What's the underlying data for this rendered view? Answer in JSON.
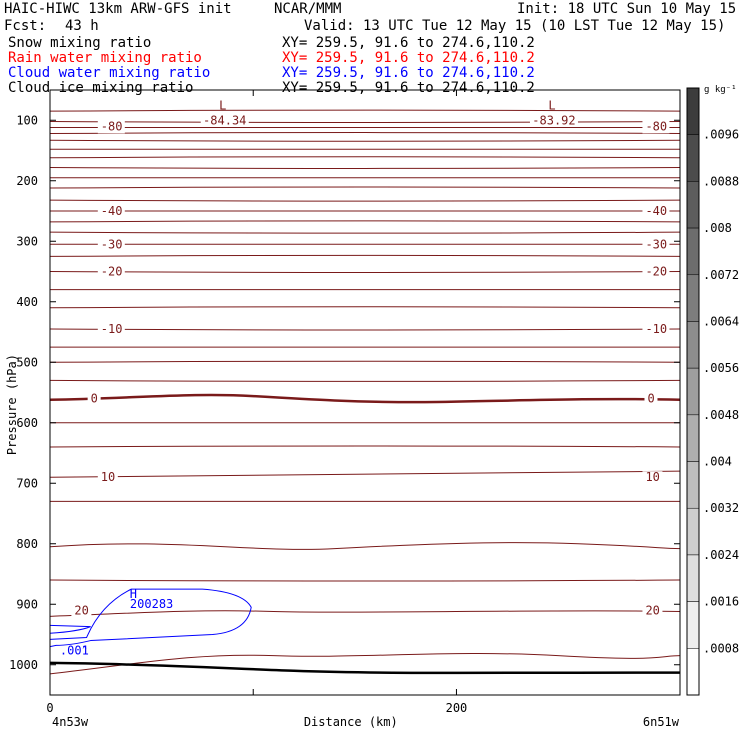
{
  "header": {
    "model": "HAIC-HIWC 13km ARW-GFS init",
    "org": "NCAR/MMM",
    "init": "Init: 18 UTC Sun 10 May 15",
    "fcst_label": "Fcst:",
    "fcst_value": "43 h",
    "valid": "Valid: 13 UTC Tue 12 May 15 (10 LST Tue 12 May 15)",
    "fields": [
      {
        "name": "Snow mixing ratio",
        "xy": "XY= 259.5, 91.6 to 274.6,110.2",
        "color": "#000000"
      },
      {
        "name": "Rain water mixing ratio",
        "xy": "XY= 259.5, 91.6 to 274.6,110.2",
        "color": "#ff0000"
      },
      {
        "name": "Cloud water mixing ratio",
        "xy": "XY= 259.5, 91.6 to 274.6,110.2",
        "color": "#0000ff"
      },
      {
        "name": "Cloud ice mixing ratio",
        "xy": "XY= 259.5, 91.6 to 274.6,110.2",
        "color": "#000000"
      }
    ]
  },
  "colorbar": {
    "unit": "g kg⁻¹",
    "ticks": [
      ".0096",
      ".0088",
      ".008",
      ".0072",
      ".0064",
      ".0056",
      ".0048",
      ".004",
      ".0032",
      ".0024",
      ".0016",
      ".0008"
    ]
  },
  "chart_data": {
    "type": "contour",
    "xlabel": "Distance (km)",
    "ylabel": "Pressure (hPa)",
    "x_ticks": [
      0,
      100,
      200
    ],
    "x_tick_labels": [
      "0",
      "",
      "200"
    ],
    "xlim": [
      0,
      310
    ],
    "y_ticks": [
      100,
      200,
      300,
      400,
      500,
      600,
      700,
      800,
      900,
      1000
    ],
    "ylim": [
      1050,
      50
    ],
    "x_endpoint_labels": {
      "left": "4n53w",
      "right": "6n51w"
    },
    "temperature_isotherms": {
      "units": "deg C",
      "labeled_contours": [
        {
          "value": -80,
          "label": "-80",
          "pressure": 110
        },
        {
          "value": -40,
          "label": "-40",
          "pressure": 250
        },
        {
          "value": -30,
          "label": "-30",
          "pressure": 305
        },
        {
          "value": -20,
          "label": "-20",
          "pressure": 350
        },
        {
          "value": -10,
          "label": "-10",
          "pressure": 445
        },
        {
          "value": 0,
          "label": "0",
          "pressure": 560
        },
        {
          "value": 10,
          "label": "10",
          "pressure": 690
        },
        {
          "value": 20,
          "label": "20",
          "pressure": 910
        }
      ],
      "minima": [
        {
          "marker": "L",
          "value": "-84.34",
          "x_km": 85
        },
        {
          "marker": "L",
          "value": "-83.92",
          "x_km": 247
        }
      ]
    },
    "cloud_water": {
      "color": "#0000ff",
      "max_marker": "H",
      "max_value": "200283",
      "contour_label": ".001"
    },
    "grid": false,
    "legend": "top-left text"
  }
}
